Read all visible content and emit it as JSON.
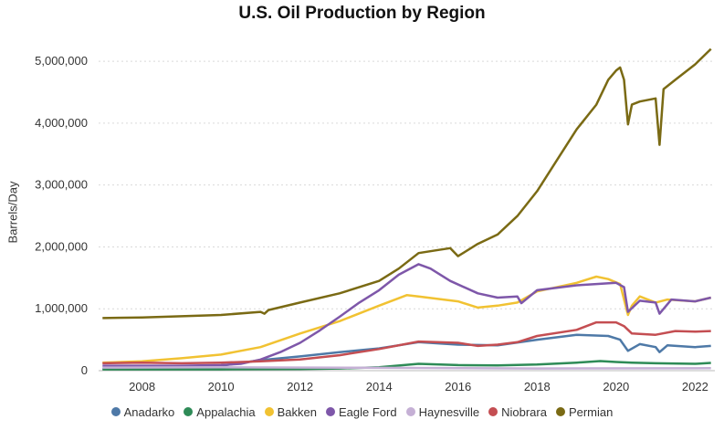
{
  "chart_data": {
    "type": "line",
    "title": "U.S. Oil Production by Region",
    "xlabel": "",
    "ylabel": "Barrels/Day",
    "xlim": [
      2006.9,
      2022.5
    ],
    "ylim": [
      0,
      5400000
    ],
    "x_ticks": [
      "2008",
      "2010",
      "2012",
      "2014",
      "2016",
      "2018",
      "2020",
      "2022"
    ],
    "y_ticks": [
      "0",
      "1,000,000",
      "2,000,000",
      "3,000,000",
      "4,000,000",
      "5,000,000"
    ],
    "grid": "horizontal dotted",
    "legend_position": "bottom",
    "series": [
      {
        "name": "Anadarko",
        "color": "#4e79a7",
        "x": [
          2007.0,
          2008.0,
          2009.0,
          2010.0,
          2011.0,
          2012.0,
          2013.0,
          2014.0,
          2015.0,
          2016.0,
          2017.0,
          2018.0,
          2019.0,
          2019.8,
          2020.1,
          2020.3,
          2020.6,
          2021.0,
          2021.1,
          2021.3,
          2022.0,
          2022.4
        ],
        "values": [
          30000,
          40000,
          50000,
          80000,
          170000,
          230000,
          300000,
          360000,
          460000,
          420000,
          410000,
          500000,
          580000,
          560000,
          500000,
          320000,
          430000,
          380000,
          300000,
          410000,
          380000,
          400000
        ]
      },
      {
        "name": "Appalachia",
        "color": "#2e8b57",
        "x": [
          2007.0,
          2010.0,
          2012.0,
          2013.0,
          2014.0,
          2015.0,
          2016.0,
          2017.0,
          2018.0,
          2019.0,
          2019.6,
          2020.0,
          2020.4,
          2021.0,
          2022.0,
          2022.4
        ],
        "values": [
          20000,
          20000,
          25000,
          35000,
          55000,
          110000,
          90000,
          85000,
          100000,
          130000,
          155000,
          140000,
          130000,
          120000,
          110000,
          125000
        ]
      },
      {
        "name": "Bakken",
        "color": "#f1c232",
        "x": [
          2007.0,
          2008.0,
          2009.0,
          2010.0,
          2011.0,
          2012.0,
          2013.0,
          2014.0,
          2014.7,
          2015.0,
          2016.0,
          2016.5,
          2017.0,
          2017.5,
          2018.0,
          2019.0,
          2019.5,
          2019.8,
          2020.1,
          2020.3,
          2020.4,
          2020.6,
          2021.0,
          2021.3,
          2022.0,
          2022.4
        ],
        "values": [
          130000,
          150000,
          200000,
          260000,
          380000,
          600000,
          800000,
          1050000,
          1220000,
          1200000,
          1120000,
          1020000,
          1050000,
          1100000,
          1280000,
          1420000,
          1520000,
          1480000,
          1400000,
          900000,
          1050000,
          1200000,
          1100000,
          1150000,
          1120000,
          1180000
        ]
      },
      {
        "name": "Eagle Ford",
        "color": "#7e57a9",
        "x": [
          2007.0,
          2009.0,
          2010.0,
          2010.5,
          2011.0,
          2011.5,
          2012.0,
          2012.5,
          2013.0,
          2013.5,
          2014.0,
          2014.5,
          2015.0,
          2015.3,
          2015.8,
          2016.5,
          2017.0,
          2017.5,
          2017.6,
          2018.0,
          2019.0,
          2019.5,
          2020.0,
          2020.2,
          2020.3,
          2020.6,
          2021.0,
          2021.1,
          2021.4,
          2022.0,
          2022.4
        ],
        "values": [
          80000,
          80000,
          90000,
          110000,
          180000,
          300000,
          450000,
          650000,
          870000,
          1100000,
          1300000,
          1550000,
          1720000,
          1650000,
          1450000,
          1250000,
          1180000,
          1200000,
          1090000,
          1300000,
          1380000,
          1400000,
          1420000,
          1350000,
          950000,
          1130000,
          1100000,
          920000,
          1150000,
          1120000,
          1180000
        ]
      },
      {
        "name": "Haynesville",
        "color": "#c5b0d5",
        "x": [
          2007.0,
          2010.0,
          2014.0,
          2018.0,
          2022.4
        ],
        "values": [
          50000,
          55000,
          45000,
          35000,
          40000
        ]
      },
      {
        "name": "Niobrara",
        "color": "#c44e52",
        "x": [
          2007.0,
          2008.0,
          2009.0,
          2010.0,
          2011.0,
          2012.0,
          2013.0,
          2014.0,
          2015.0,
          2016.0,
          2016.5,
          2017.0,
          2017.5,
          2018.0,
          2019.0,
          2019.5,
          2020.0,
          2020.2,
          2020.4,
          2021.0,
          2021.5,
          2022.0,
          2022.4
        ],
        "values": [
          120000,
          130000,
          120000,
          130000,
          150000,
          180000,
          250000,
          350000,
          470000,
          450000,
          400000,
          420000,
          460000,
          560000,
          660000,
          780000,
          780000,
          720000,
          600000,
          580000,
          640000,
          630000,
          640000
        ]
      },
      {
        "name": "Permian",
        "color": "#7a6a14",
        "x": [
          2007.0,
          2008.0,
          2009.0,
          2010.0,
          2011.0,
          2011.1,
          2011.2,
          2012.0,
          2013.0,
          2014.0,
          2014.5,
          2015.0,
          2015.5,
          2015.8,
          2016.0,
          2016.5,
          2017.0,
          2017.5,
          2018.0,
          2018.5,
          2019.0,
          2019.5,
          2019.8,
          2020.0,
          2020.1,
          2020.2,
          2020.3,
          2020.4,
          2020.6,
          2021.0,
          2021.1,
          2021.2,
          2021.5,
          2022.0,
          2022.4
        ],
        "values": [
          850000,
          860000,
          880000,
          900000,
          950000,
          920000,
          980000,
          1100000,
          1250000,
          1450000,
          1650000,
          1900000,
          1950000,
          1980000,
          1850000,
          2050000,
          2200000,
          2500000,
          2900000,
          3400000,
          3900000,
          4300000,
          4700000,
          4850000,
          4900000,
          4700000,
          3980000,
          4300000,
          4350000,
          4400000,
          3650000,
          4550000,
          4700000,
          4950000,
          5200000
        ]
      }
    ]
  }
}
